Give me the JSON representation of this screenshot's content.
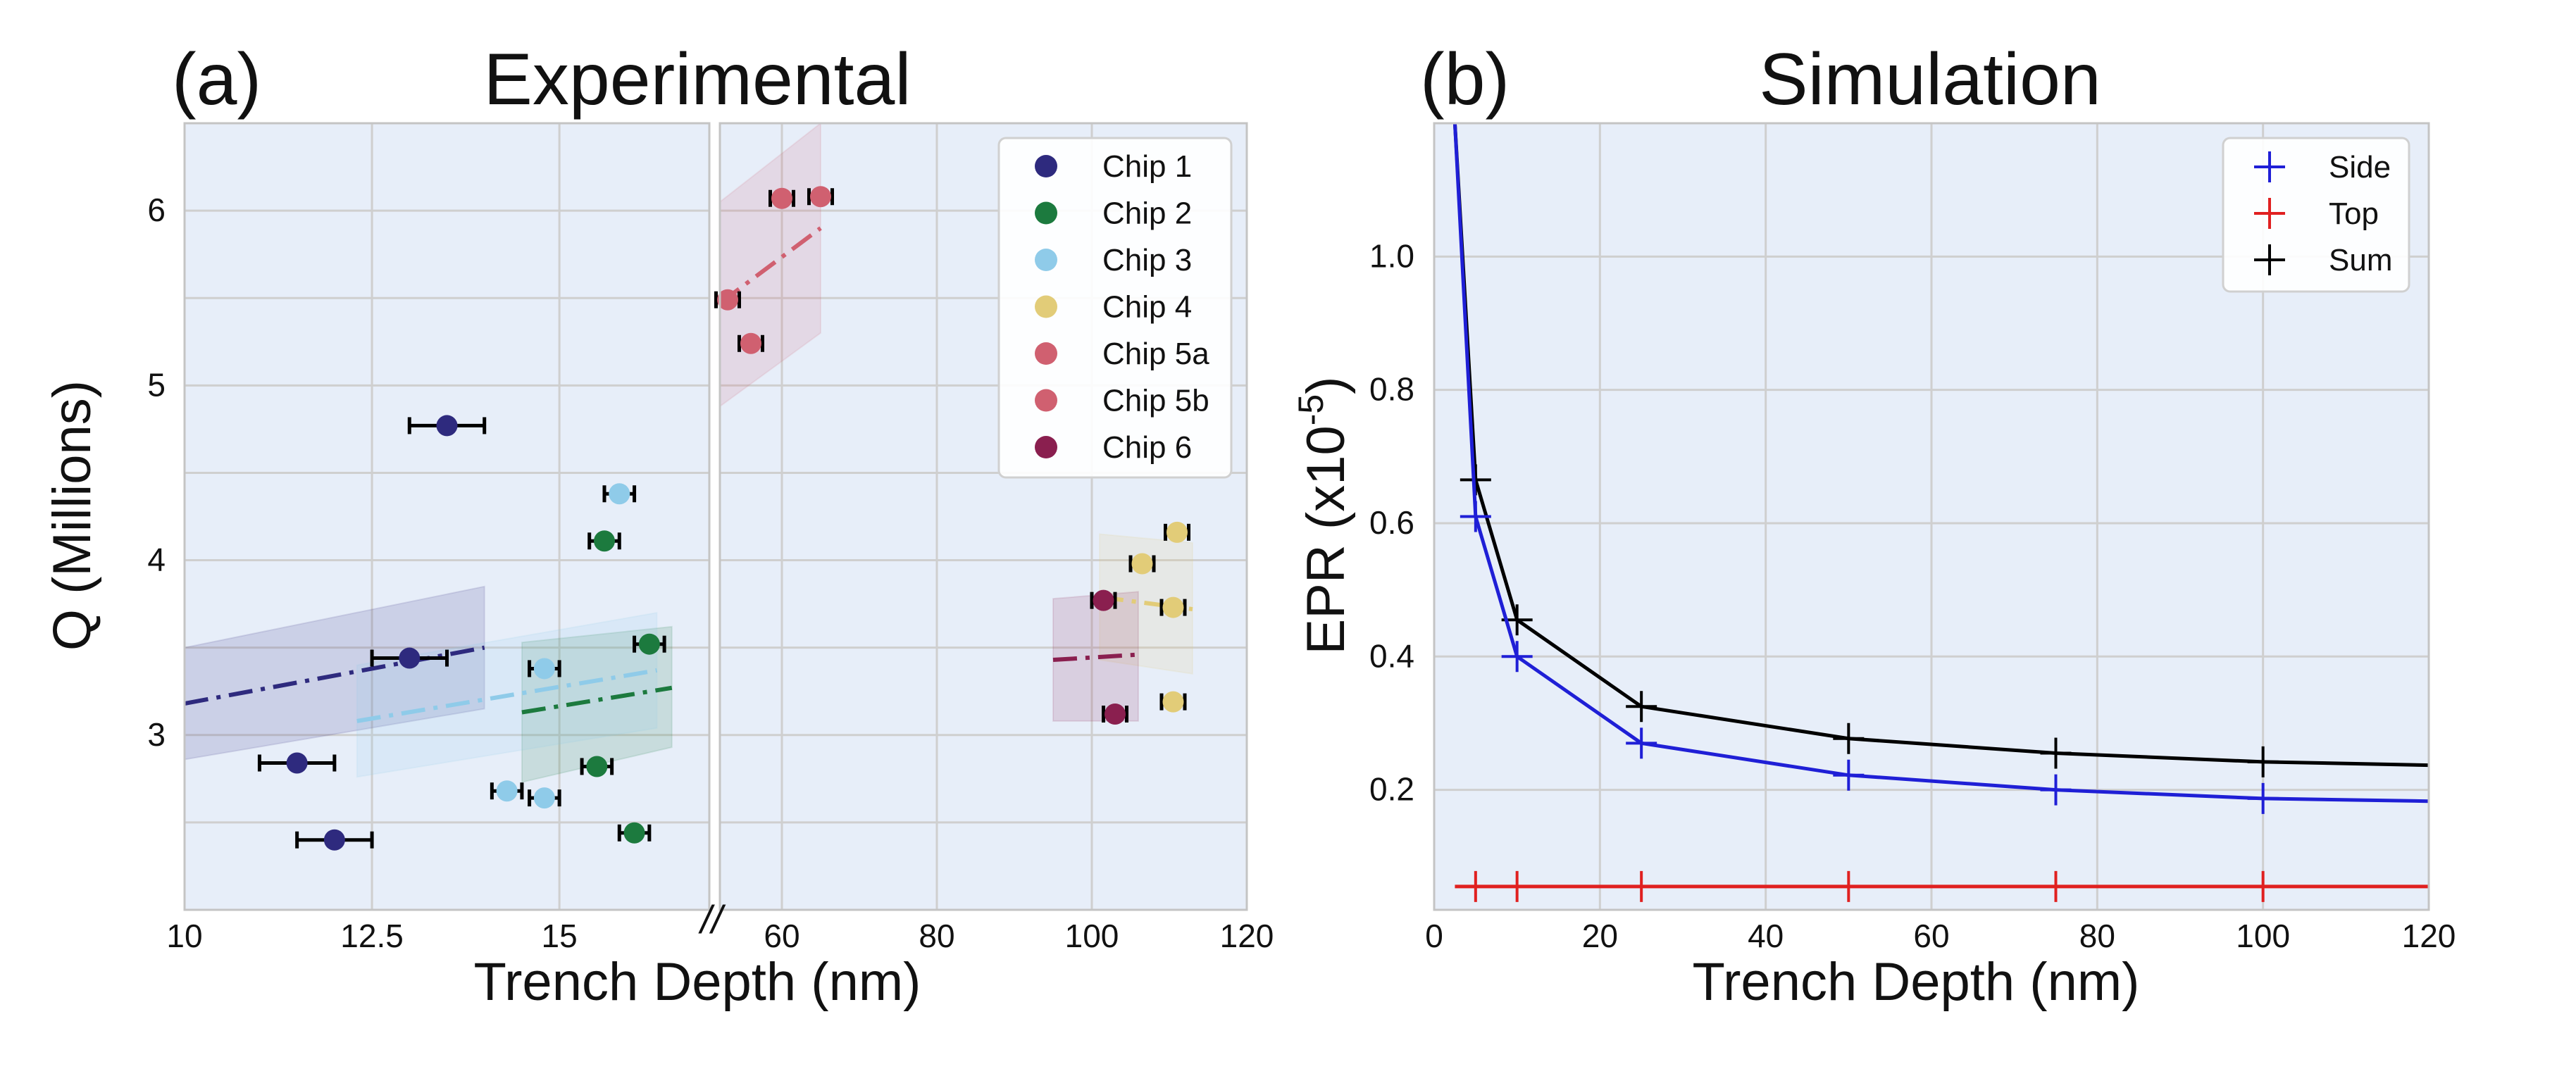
{
  "panel_a": {
    "label": "(a)",
    "title": "Experimental",
    "xlabel": "Trench Depth (nm)",
    "ylabel": "Q (Millions)",
    "break_mark": "//",
    "colors": {
      "background": "#e7eef9",
      "grid": "#cfcfcf",
      "frame": "#c4c4c4"
    }
  },
  "panel_b": {
    "label": "(b)",
    "title": "Simulation",
    "xlabel": "Trench Depth (nm)",
    "ylabel_main": "EPR (x10",
    "ylabel_sup": "-5",
    "ylabel_end": ")",
    "colors": {
      "background": "#e7eef9",
      "grid": "#cfcfcf",
      "frame": "#c4c4c4"
    }
  },
  "chart_data": [
    {
      "type": "scatter",
      "title": "Experimental",
      "xlabel": "Trench Depth (nm)",
      "ylabel": "Q (Millions)",
      "broken_x_axis": true,
      "left_segment": {
        "xlim": [
          10,
          17
        ],
        "ticks": [
          {
            "value": 10,
            "label": "10"
          },
          {
            "value": 12.5,
            "label": "12.5"
          },
          {
            "value": 15,
            "label": "15"
          }
        ]
      },
      "right_segment": {
        "xlim": [
          52,
          120
        ],
        "ticks": [
          {
            "value": 60,
            "label": "60"
          },
          {
            "value": 80,
            "label": "80"
          },
          {
            "value": 100,
            "label": "100"
          },
          {
            "value": 120,
            "label": "120"
          }
        ]
      },
      "ylim": [
        2.0,
        6.5
      ],
      "yticks": [
        3,
        4,
        5,
        6
      ],
      "grid": true,
      "legend_position": "top-right",
      "series": [
        {
          "name": "Chip 1",
          "color": "#2e2a7e",
          "xerr": 0.5,
          "points": [
            {
              "x": 13.5,
              "y": 4.77
            },
            {
              "x": 13.0,
              "y": 3.44
            },
            {
              "x": 11.5,
              "y": 2.84
            },
            {
              "x": 12.0,
              "y": 2.4
            }
          ],
          "fit": {
            "segment": "left",
            "x": [
              10,
              14
            ],
            "y": [
              3.18,
              3.5
            ],
            "band": [
              [
                10,
                2.86,
                3.5
              ],
              [
                14,
                3.15,
                3.85
              ]
            ]
          }
        },
        {
          "name": "Chip 2",
          "color": "#1c7a3e",
          "xerr": 0.2,
          "points": [
            {
              "x": 15.6,
              "y": 4.11
            },
            {
              "x": 16.2,
              "y": 3.52
            },
            {
              "x": 15.5,
              "y": 2.82
            },
            {
              "x": 16.0,
              "y": 2.44
            }
          ],
          "fit": {
            "segment": "left",
            "x": [
              14.5,
              16.5
            ],
            "y": [
              3.13,
              3.27
            ],
            "band": [
              [
                14.5,
                2.73,
                3.53
              ],
              [
                16.5,
                2.93,
                3.62
              ]
            ]
          }
        },
        {
          "name": "Chip 3",
          "color": "#8fcbe9",
          "xerr": 0.2,
          "points": [
            {
              "x": 15.8,
              "y": 4.38
            },
            {
              "x": 14.8,
              "y": 3.38
            },
            {
              "x": 14.3,
              "y": 2.68
            },
            {
              "x": 14.8,
              "y": 2.64
            }
          ],
          "fit": {
            "segment": "left",
            "x": [
              12.3,
              16.3
            ],
            "y": [
              3.08,
              3.37
            ],
            "band": [
              [
                12.3,
                2.76,
                3.4
              ],
              [
                16.3,
                3.04,
                3.7
              ]
            ]
          }
        },
        {
          "name": "Chip 4",
          "color": "#e2cc78",
          "xerr": 1.5,
          "points": [
            {
              "x": 111,
              "y": 4.16
            },
            {
              "x": 106.5,
              "y": 3.98
            },
            {
              "x": 110.5,
              "y": 3.73
            },
            {
              "x": 110.5,
              "y": 3.19
            }
          ],
          "fit": {
            "segment": "right",
            "x": [
              101,
              113
            ],
            "y": [
              3.79,
              3.72
            ],
            "band": [
              [
                101,
                3.43,
                4.15
              ],
              [
                113,
                3.35,
                4.1
              ]
            ]
          }
        },
        {
          "name": "Chip 5a",
          "color": "#d06070",
          "xerr": 1.5,
          "points": [
            {
              "x": 60,
              "y": 6.07
            },
            {
              "x": 65,
              "y": 6.08
            }
          ],
          "fit": {
            "segment": "right",
            "x": [
              52,
              65
            ],
            "y": [
              5.47,
              5.9
            ],
            "band": [
              [
                52,
                4.88,
                6.05
              ],
              [
                65,
                5.3,
                6.5
              ]
            ]
          }
        },
        {
          "name": "Chip 5b",
          "color": "#d06070",
          "xerr": 1.5,
          "points": [
            {
              "x": 53,
              "y": 5.49
            },
            {
              "x": 56,
              "y": 5.24
            }
          ]
        },
        {
          "name": "Chip 6",
          "color": "#8a1f4f",
          "xerr": 1.5,
          "points": [
            {
              "x": 101.5,
              "y": 3.77
            },
            {
              "x": 103,
              "y": 3.12
            }
          ],
          "fit": {
            "segment": "right",
            "x": [
              95,
              106
            ],
            "y": [
              3.43,
              3.46
            ],
            "band": [
              [
                95,
                3.08,
                3.78
              ],
              [
                106,
                3.08,
                3.82
              ]
            ]
          }
        }
      ]
    },
    {
      "type": "line",
      "title": "Simulation",
      "xlabel": "Trench Depth (nm)",
      "ylabel": "EPR (x10^-5)",
      "xlim": [
        0,
        120
      ],
      "ylim": [
        0.02,
        1.2
      ],
      "xticks": [
        0,
        20,
        40,
        60,
        80,
        100,
        120
      ],
      "yticks": [
        0.2,
        0.4,
        0.6,
        0.8,
        1.0
      ],
      "ytick_labels": [
        "0.2",
        "0.4",
        "0.6",
        "0.8",
        "1.0"
      ],
      "grid": true,
      "legend_position": "top-right",
      "x": [
        2.5,
        5,
        10,
        25,
        50,
        75,
        100,
        120
      ],
      "marker_x": [
        5,
        10,
        25,
        50,
        75,
        100
      ],
      "series": [
        {
          "name": "Side",
          "color": "#1f1fd6",
          "values": [
            1.2,
            0.61,
            0.4,
            0.27,
            0.222,
            0.2,
            0.187,
            0.183
          ]
        },
        {
          "name": "Top",
          "color": "#e02020",
          "values": [
            0.055,
            0.055,
            0.055,
            0.055,
            0.055,
            0.055,
            0.055,
            0.055
          ]
        },
        {
          "name": "Sum",
          "color": "#000000",
          "values": [
            1.2,
            0.665,
            0.455,
            0.325,
            0.277,
            0.255,
            0.242,
            0.237
          ]
        }
      ]
    }
  ]
}
